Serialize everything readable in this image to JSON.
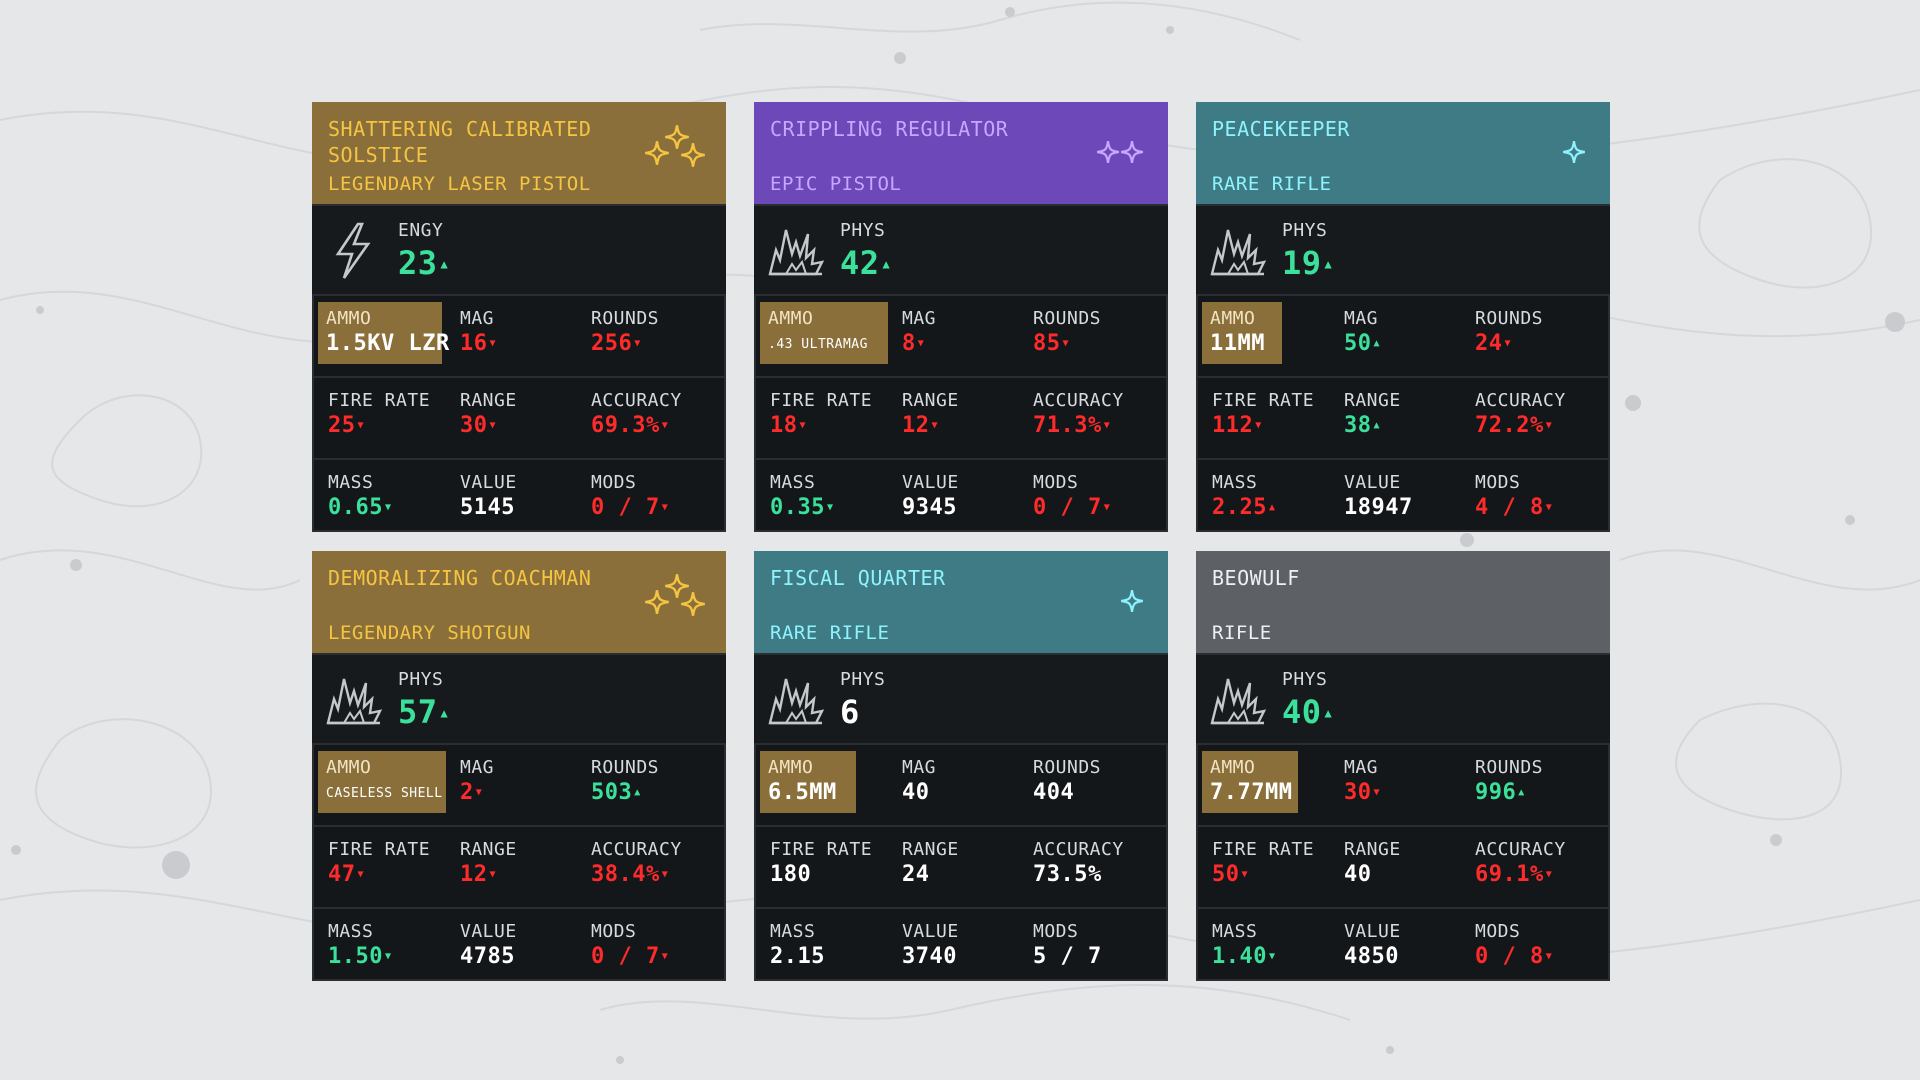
{
  "colors": {
    "legendary_header": "#8b6f3b",
    "epic_header": "#6c48b8",
    "rare_header": "#3f7b84",
    "common_header": "#5d6166",
    "stat_up": "#3be19a",
    "stat_down": "#ff2b2b",
    "card_bg": "#14171a"
  },
  "labels": {
    "ammo": "AMMO",
    "mag": "MAG",
    "rounds": "ROUNDS",
    "fire_rate": "FIRE RATE",
    "range": "RANGE",
    "accuracy": "ACCURACY",
    "mass": "MASS",
    "value": "VALUE",
    "mods": "MODS"
  },
  "cards": [
    {
      "name": "SHATTERING CALIBRATED SOLSTICE",
      "subtitle": "LEGENDARY LASER PISTOL",
      "rarity": "legendary",
      "stars": 3,
      "damage_icon": "lightning-icon",
      "damage_type": "ENGY",
      "damage": "23",
      "damage_trend": "up",
      "ammo": "1.5KV LZR",
      "ammo_small": false,
      "mag": "16",
      "mag_trend": "down",
      "rounds": "256",
      "rounds_trend": "down",
      "fire_rate": "25",
      "fire_rate_trend": "down",
      "range": "30",
      "range_trend": "down",
      "accuracy": "69.3%",
      "accuracy_trend": "down",
      "mass": "0.65",
      "mass_trend": "up-green-down",
      "value": "5145",
      "mods": "0 / 7",
      "mods_trend": "down"
    },
    {
      "name": "CRIPPLING REGULATOR",
      "subtitle": "EPIC PISTOL",
      "rarity": "epic",
      "stars": 2,
      "damage_icon": "explosion-icon",
      "damage_type": "PHYS",
      "damage": "42",
      "damage_trend": "up",
      "ammo": ".43 ULTRAMAG",
      "ammo_small": true,
      "mag": "8",
      "mag_trend": "down",
      "rounds": "85",
      "rounds_trend": "down",
      "fire_rate": "18",
      "fire_rate_trend": "down",
      "range": "12",
      "range_trend": "down",
      "accuracy": "71.3%",
      "accuracy_trend": "down",
      "mass": "0.35",
      "mass_trend": "up-green-down",
      "value": "9345",
      "mods": "0 / 7",
      "mods_trend": "down"
    },
    {
      "name": "PEACEKEEPER",
      "subtitle": "RARE RIFLE",
      "rarity": "rare",
      "stars": 1,
      "damage_icon": "explosion-icon",
      "damage_type": "PHYS",
      "damage": "19",
      "damage_trend": "up",
      "ammo": "11MM",
      "ammo_small": false,
      "mag": "50",
      "mag_trend": "up",
      "rounds": "24",
      "rounds_trend": "down",
      "fire_rate": "112",
      "fire_rate_trend": "down",
      "range": "38",
      "range_trend": "up",
      "accuracy": "72.2%",
      "accuracy_trend": "down",
      "mass": "2.25",
      "mass_trend": "red-up",
      "value": "18947",
      "mods": "4 / 8",
      "mods_trend": "down"
    },
    {
      "name": "DEMORALIZING COACHMAN",
      "subtitle": "LEGENDARY SHOTGUN",
      "rarity": "legendary",
      "stars": 3,
      "damage_icon": "explosion-icon",
      "damage_type": "PHYS",
      "damage": "57",
      "damage_trend": "up",
      "ammo": "CASELESS SHELL",
      "ammo_small": true,
      "mag": "2",
      "mag_trend": "down",
      "rounds": "503",
      "rounds_trend": "up",
      "fire_rate": "47",
      "fire_rate_trend": "down",
      "range": "12",
      "range_trend": "down",
      "accuracy": "38.4%",
      "accuracy_trend": "down",
      "mass": "1.50",
      "mass_trend": "up-green-down",
      "value": "4785",
      "mods": "0 / 7",
      "mods_trend": "down"
    },
    {
      "name": "FISCAL QUARTER",
      "subtitle": "RARE RIFLE",
      "rarity": "rare",
      "stars": 1,
      "damage_icon": "explosion-icon",
      "damage_type": "PHYS",
      "damage": "6",
      "damage_trend": "neutral",
      "ammo": "6.5MM",
      "ammo_small": false,
      "mag": "40",
      "mag_trend": "neutral",
      "rounds": "404",
      "rounds_trend": "neutral",
      "fire_rate": "180",
      "fire_rate_trend": "neutral",
      "range": "24",
      "range_trend": "neutral",
      "accuracy": "73.5%",
      "accuracy_trend": "neutral",
      "mass": "2.15",
      "mass_trend": "neutral",
      "value": "3740",
      "mods": "5 / 7",
      "mods_trend": "neutral"
    },
    {
      "name": "BEOWULF",
      "subtitle": "RIFLE",
      "rarity": "common",
      "stars": 0,
      "damage_icon": "explosion-icon",
      "damage_type": "PHYS",
      "damage": "40",
      "damage_trend": "up",
      "ammo": "7.77MM",
      "ammo_small": false,
      "mag": "30",
      "mag_trend": "down",
      "rounds": "996",
      "rounds_trend": "up",
      "fire_rate": "50",
      "fire_rate_trend": "down",
      "range": "40",
      "range_trend": "neutral",
      "accuracy": "69.1%",
      "accuracy_trend": "down",
      "mass": "1.40",
      "mass_trend": "up-green-down",
      "value": "4850",
      "mods": "0 / 8",
      "mods_trend": "down"
    }
  ]
}
